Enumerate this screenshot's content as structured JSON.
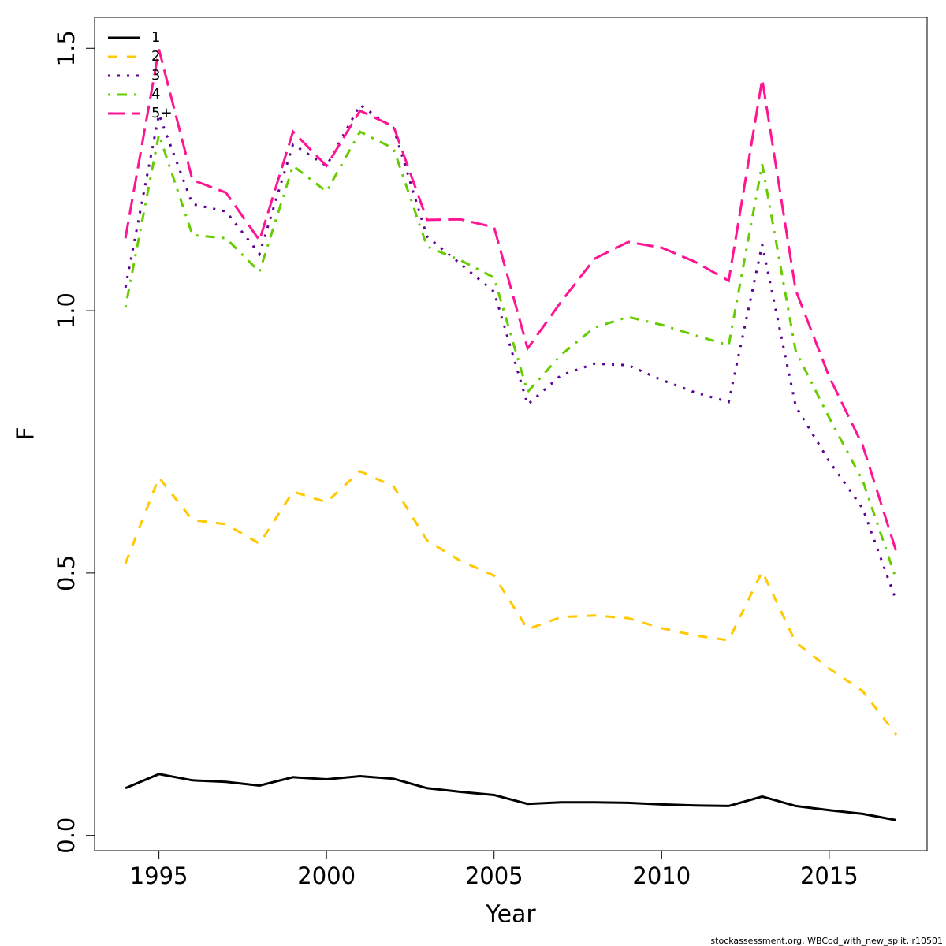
{
  "chart_data": {
    "type": "line",
    "xlabel": "Year",
    "ylabel": "F",
    "footnote": "stockassessment.org, WBCod_with_new_split, r10501",
    "x": [
      1994,
      1995,
      1996,
      1997,
      1998,
      1999,
      2000,
      2001,
      2002,
      2003,
      2004,
      2005,
      2006,
      2007,
      2008,
      2009,
      2010,
      2011,
      2012,
      2013,
      2014,
      2015,
      2016,
      2017
    ],
    "series": [
      {
        "name": "1",
        "color": "#000000",
        "lty": "solid",
        "values": [
          0.09,
          0.117,
          0.105,
          0.102,
          0.095,
          0.111,
          0.107,
          0.113,
          0.108,
          0.09,
          0.083,
          0.077,
          0.06,
          0.063,
          0.063,
          0.062,
          0.059,
          0.057,
          0.056,
          0.074,
          0.056,
          0.048,
          0.041,
          0.029
        ]
      },
      {
        "name": "2",
        "color": "#FFC800",
        "lty": "dashed",
        "values": [
          0.518,
          0.682,
          0.601,
          0.593,
          0.556,
          0.655,
          0.635,
          0.694,
          0.665,
          0.562,
          0.523,
          0.495,
          0.393,
          0.416,
          0.419,
          0.414,
          0.395,
          0.381,
          0.372,
          0.503,
          0.368,
          0.318,
          0.275,
          0.192
        ]
      },
      {
        "name": "3",
        "color": "#5D0093",
        "lty": "dotted",
        "values": [
          1.044,
          1.374,
          1.203,
          1.189,
          1.108,
          1.317,
          1.276,
          1.392,
          1.348,
          1.141,
          1.089,
          1.036,
          0.821,
          0.877,
          0.899,
          0.896,
          0.868,
          0.844,
          0.826,
          1.126,
          0.818,
          0.713,
          0.623,
          0.447
        ]
      },
      {
        "name": "4",
        "color": "#66CC00",
        "lty": "dotdash",
        "values": [
          1.006,
          1.336,
          1.144,
          1.138,
          1.074,
          1.276,
          1.227,
          1.341,
          1.309,
          1.122,
          1.096,
          1.063,
          0.845,
          0.916,
          0.968,
          0.988,
          0.973,
          0.953,
          0.934,
          1.279,
          0.923,
          0.796,
          0.676,
          0.488
        ]
      },
      {
        "name": "5+",
        "color": "#FF1493",
        "lty": "longdash",
        "values": [
          1.138,
          1.498,
          1.249,
          1.225,
          1.134,
          1.341,
          1.276,
          1.381,
          1.351,
          1.173,
          1.174,
          1.159,
          0.928,
          1.017,
          1.099,
          1.131,
          1.12,
          1.093,
          1.057,
          1.441,
          1.039,
          0.874,
          0.743,
          0.541
        ]
      }
    ],
    "xlim": [
      1993.08,
      2017.92
    ],
    "xticks": [
      1995,
      2000,
      2005,
      2010,
      2015
    ],
    "ylim": [
      -0.029,
      1.559
    ],
    "yticks": [
      {
        "value": 0,
        "label": "0.0"
      },
      0.5,
      {
        "value": 1,
        "label": "1.0"
      },
      1.5
    ],
    "legend": "top-left",
    "grid": false
  }
}
